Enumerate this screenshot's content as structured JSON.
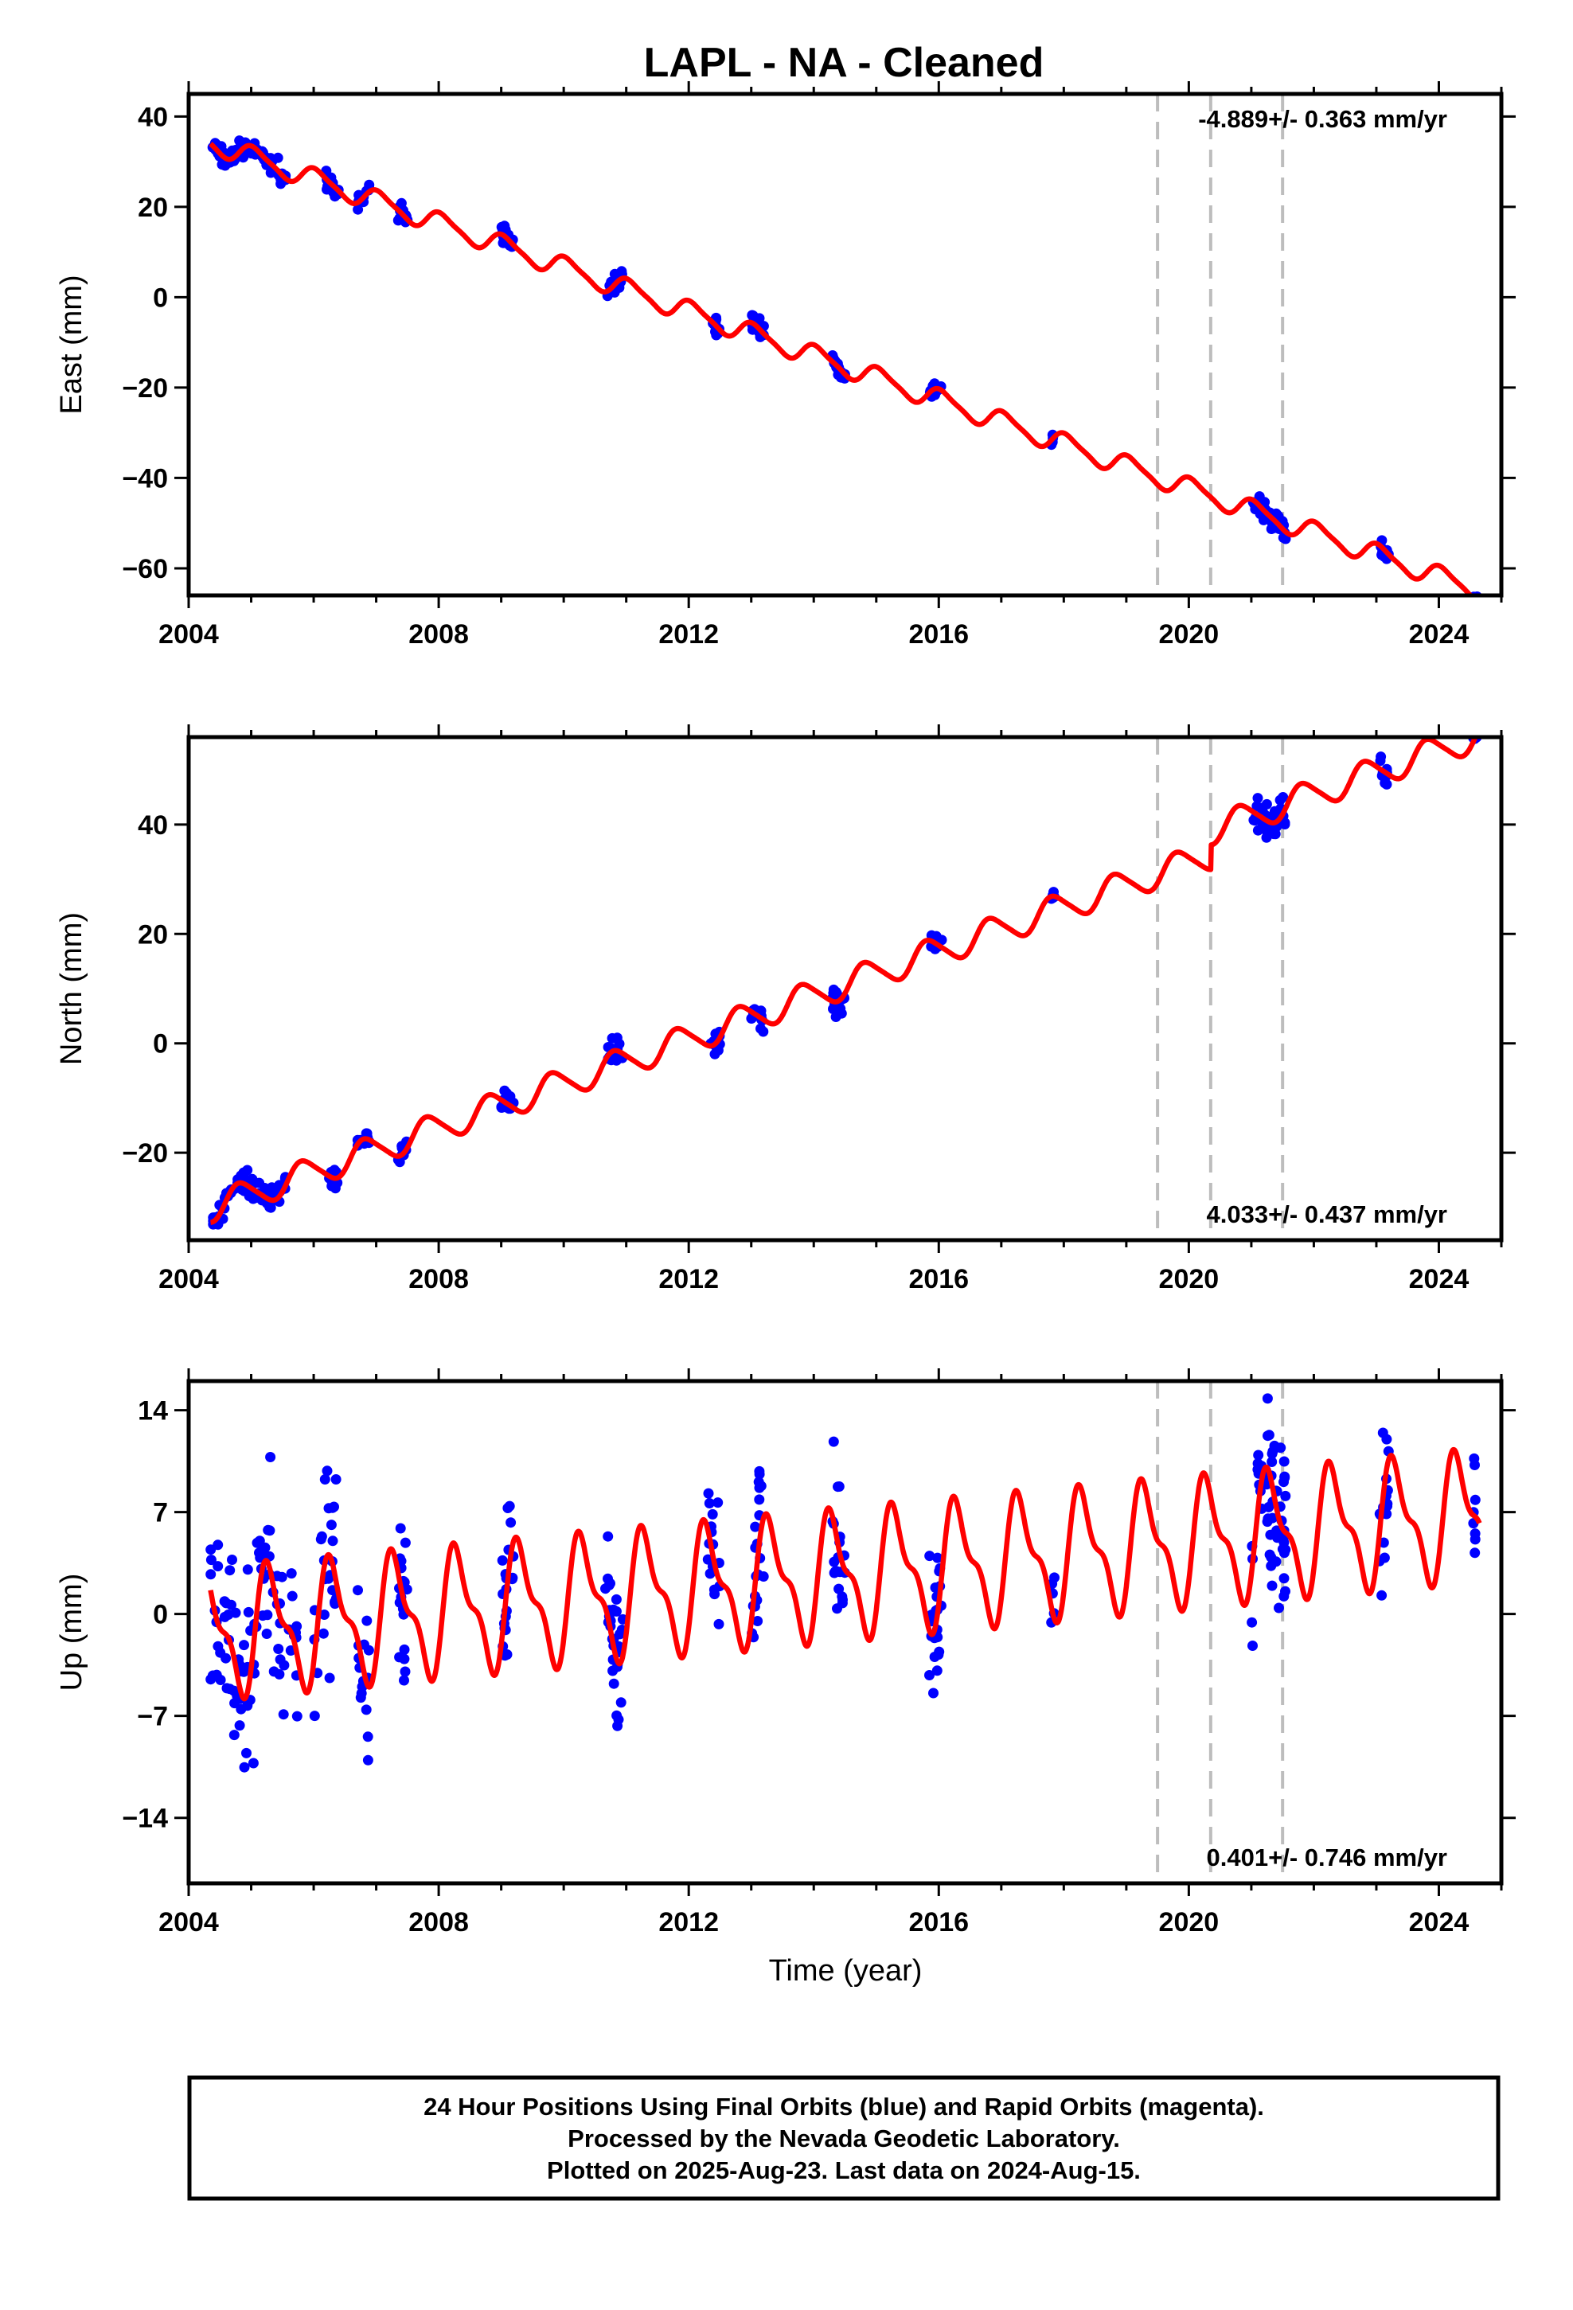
{
  "figure": {
    "title": "LAPL  - NA - Cleaned",
    "xlabel": "Time (year)",
    "footer": [
      "24 Hour Positions Using Final Orbits (blue) and Rapid Orbits (magenta).",
      "Processed by the Nevada Geodetic Laboratory.",
      "Plotted on 2025-Aug-23. Last data on 2024-Aug-15."
    ],
    "colors": {
      "data": "#0000ff",
      "model": "#ff0000",
      "breaks": "#bdbdbd",
      "frame": "#000000"
    }
  },
  "chart_data": [
    {
      "type": "scatter",
      "component": "East",
      "ylabel": "East (mm)",
      "xlim": [
        2004.0,
        2025.0
      ],
      "ylim": [
        -66,
        45
      ],
      "xticks": [
        2004,
        2008,
        2012,
        2016,
        2020,
        2024
      ],
      "yticks": [
        40,
        20,
        0,
        -20,
        -40,
        -60
      ],
      "ytick_labels": [
        "40",
        "20",
        "0",
        "−20",
        "−40",
        "−60"
      ],
      "rate_label": "-4.889+/- 0.363 mm/yr",
      "rate_position": "top-right",
      "model": {
        "intercept_2004": 36.0,
        "rate": -4.889,
        "annual_amp": 2.2,
        "semiannual_amp": 0.5,
        "phase": 1.2,
        "offsets": []
      },
      "breaks": [
        2019.5,
        2020.35,
        2021.5
      ],
      "segments": [
        {
          "x0": 2004.35,
          "x1": 2005.55,
          "n": 70,
          "spread": 1.8
        },
        {
          "x0": 2006.2,
          "x1": 2006.4,
          "n": 14,
          "spread": 1.5
        },
        {
          "x0": 2006.7,
          "x1": 2006.9,
          "n": 14,
          "spread": 1.5
        },
        {
          "x0": 2007.35,
          "x1": 2007.5,
          "n": 14,
          "spread": 1.6
        },
        {
          "x0": 2009.0,
          "x1": 2009.2,
          "n": 16,
          "spread": 1.6
        },
        {
          "x0": 2010.7,
          "x1": 2010.95,
          "n": 18,
          "spread": 1.6
        },
        {
          "x0": 2012.35,
          "x1": 2012.5,
          "n": 14,
          "spread": 1.4
        },
        {
          "x0": 2013.0,
          "x1": 2013.2,
          "n": 14,
          "spread": 1.4
        },
        {
          "x0": 2014.3,
          "x1": 2014.5,
          "n": 16,
          "spread": 1.5
        },
        {
          "x0": 2015.85,
          "x1": 2016.05,
          "n": 14,
          "spread": 1.3
        },
        {
          "x0": 2017.8,
          "x1": 2017.85,
          "n": 5,
          "spread": 1.3
        },
        {
          "x0": 2021.0,
          "x1": 2021.55,
          "n": 40,
          "spread": 1.6
        },
        {
          "x0": 2023.05,
          "x1": 2023.2,
          "n": 12,
          "spread": 1.3
        },
        {
          "x0": 2024.55,
          "x1": 2024.62,
          "n": 6,
          "spread": 1.0
        }
      ]
    },
    {
      "type": "scatter",
      "component": "North",
      "ylabel": "North (mm)",
      "xlim": [
        2004.0,
        2025.0
      ],
      "ylim": [
        -36,
        56
      ],
      "xticks": [
        2004,
        2008,
        2012,
        2016,
        2020,
        2024
      ],
      "yticks": [
        40,
        20,
        0,
        -20
      ],
      "ytick_labels": [
        "40",
        "20",
        "0",
        "−20"
      ],
      "rate_label": "4.033+/- 0.437 mm/yr",
      "rate_position": "bottom-right",
      "model": {
        "intercept_2004": -31.5,
        "rate": 4.033,
        "annual_amp": 2.6,
        "semiannual_amp": 0.4,
        "phase": 2.6,
        "offsets": [
          {
            "t": 2020.35,
            "dy": 4.5
          }
        ]
      },
      "breaks": [
        2019.5,
        2020.35,
        2021.5
      ],
      "segments": [
        {
          "x0": 2004.35,
          "x1": 2005.55,
          "n": 70,
          "spread": 1.6
        },
        {
          "x0": 2006.2,
          "x1": 2006.4,
          "n": 14,
          "spread": 1.5
        },
        {
          "x0": 2006.7,
          "x1": 2006.9,
          "n": 14,
          "spread": 1.2
        },
        {
          "x0": 2007.35,
          "x1": 2007.5,
          "n": 14,
          "spread": 1.5
        },
        {
          "x0": 2009.0,
          "x1": 2009.2,
          "n": 16,
          "spread": 1.2
        },
        {
          "x0": 2010.7,
          "x1": 2010.95,
          "n": 18,
          "spread": 1.8
        },
        {
          "x0": 2012.35,
          "x1": 2012.5,
          "n": 14,
          "spread": 1.3
        },
        {
          "x0": 2013.0,
          "x1": 2013.2,
          "n": 14,
          "spread": 1.6
        },
        {
          "x0": 2014.3,
          "x1": 2014.5,
          "n": 16,
          "spread": 2.0
        },
        {
          "x0": 2015.85,
          "x1": 2016.05,
          "n": 14,
          "spread": 1.4
        },
        {
          "x0": 2017.8,
          "x1": 2017.85,
          "n": 5,
          "spread": 1.0
        },
        {
          "x0": 2021.0,
          "x1": 2021.55,
          "n": 40,
          "spread": 2.0
        },
        {
          "x0": 2023.05,
          "x1": 2023.2,
          "n": 12,
          "spread": 1.2
        },
        {
          "x0": 2024.55,
          "x1": 2024.62,
          "n": 6,
          "spread": 1.0
        }
      ]
    },
    {
      "type": "scatter",
      "component": "Up",
      "ylabel": "Up (mm)",
      "xlim": [
        2004.0,
        2025.0
      ],
      "ylim": [
        -18.5,
        16
      ],
      "xticks": [
        2004,
        2008,
        2012,
        2016,
        2020,
        2024
      ],
      "yticks": [
        14,
        7,
        0,
        -7,
        -14
      ],
      "ytick_labels": [
        "14",
        "7",
        "0",
        "−7",
        "−14"
      ],
      "rate_label": "0.401+/- 0.746 mm/yr",
      "rate_position": "bottom-right",
      "model": {
        "intercept_2004": -1.5,
        "rate": 0.401,
        "annual_amp": 3.8,
        "semiannual_amp": 1.6,
        "phase": -0.4,
        "offsets": []
      },
      "breaks": [
        2019.5,
        2020.35,
        2021.5
      ],
      "segments": [
        {
          "x0": 2004.35,
          "x1": 2005.55,
          "n": 80,
          "spread": 4.5
        },
        {
          "x0": 2005.6,
          "x1": 2005.75,
          "n": 10,
          "spread": 3.5
        },
        {
          "x0": 2006.0,
          "x1": 2006.4,
          "n": 26,
          "spread": 5.0
        },
        {
          "x0": 2006.7,
          "x1": 2006.9,
          "n": 16,
          "spread": 4.0
        },
        {
          "x0": 2007.35,
          "x1": 2007.5,
          "n": 18,
          "spread": 4.5
        },
        {
          "x0": 2009.0,
          "x1": 2009.2,
          "n": 20,
          "spread": 4.0
        },
        {
          "x0": 2010.65,
          "x1": 2010.95,
          "n": 30,
          "spread": 3.5
        },
        {
          "x0": 2012.3,
          "x1": 2012.5,
          "n": 16,
          "spread": 3.8
        },
        {
          "x0": 2013.0,
          "x1": 2013.2,
          "n": 22,
          "spread": 4.2
        },
        {
          "x0": 2014.3,
          "x1": 2014.5,
          "n": 20,
          "spread": 4.5
        },
        {
          "x0": 2015.85,
          "x1": 2016.05,
          "n": 22,
          "spread": 3.8
        },
        {
          "x0": 2017.8,
          "x1": 2017.85,
          "n": 5,
          "spread": 2.5
        },
        {
          "x0": 2021.0,
          "x1": 2021.55,
          "n": 60,
          "spread": 4.5
        },
        {
          "x0": 2023.05,
          "x1": 2023.2,
          "n": 16,
          "spread": 4.0
        },
        {
          "x0": 2024.55,
          "x1": 2024.62,
          "n": 8,
          "spread": 3.5
        }
      ]
    }
  ]
}
